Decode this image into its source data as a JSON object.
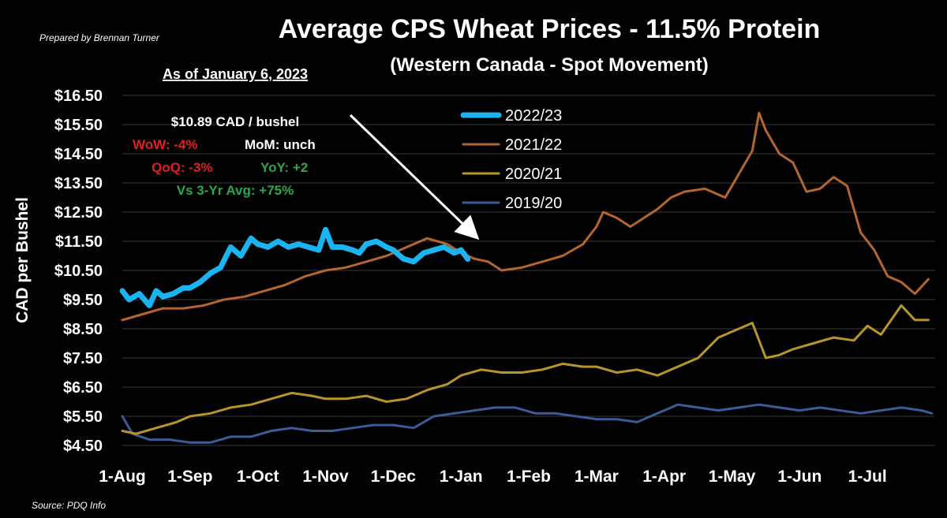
{
  "header": {
    "title": "Average CPS Wheat Prices - 11.5% Protein",
    "subtitle": "(Western Canada - Spot Movement)",
    "prepared_by": "Prepared by Brennan Turner",
    "source": "Source: PDQ Info"
  },
  "annotation": {
    "as_of": "As of January 6, 2023",
    "price": "$10.89 CAD / bushel",
    "wow": "WoW: -4%",
    "mom": "MoM: unch",
    "qoq": "QoQ: -3%",
    "yoy": "YoY: +2",
    "vs3yr": "Vs 3-Yr Avg: +75%"
  },
  "colors": {
    "2022/23": "#1ab4f0",
    "2021/22": "#b5652f",
    "2020/21": "#b8952a",
    "2019/20": "#3d5a99",
    "negative": "#e02020",
    "positive": "#2aa84a",
    "neutral": "#ffffff"
  },
  "chart_data": {
    "type": "line",
    "title": "Average CPS Wheat Prices - 11.5% Protein",
    "subtitle": "(Western Canada - Spot Movement)",
    "ylabel": "CAD per Bushel",
    "xlabel": "",
    "ylim": [
      4.5,
      16.5
    ],
    "yticks": [
      "$4.50",
      "$5.50",
      "$6.50",
      "$7.50",
      "$8.50",
      "$9.50",
      "$10.50",
      "$11.50",
      "$12.50",
      "$13.50",
      "$14.50",
      "$15.50",
      "$16.50"
    ],
    "ytick_values": [
      4.5,
      5.5,
      6.5,
      7.5,
      8.5,
      9.5,
      10.5,
      11.5,
      12.5,
      13.5,
      14.5,
      15.5,
      16.5
    ],
    "xticks": [
      "1-Aug",
      "1-Sep",
      "1-Oct",
      "1-Nov",
      "1-Dec",
      "1-Jan",
      "1-Feb",
      "1-Mar",
      "1-Apr",
      "1-May",
      "1-Jun",
      "1-Jul"
    ],
    "x_unit": "marketing-year month (Aug = 0 ... Jul = 11)",
    "grid": "horizontal",
    "legend_position": "top-center",
    "series": [
      {
        "name": "2022/23",
        "x": [
          0,
          0.1,
          0.25,
          0.4,
          0.5,
          0.6,
          0.75,
          0.9,
          1.0,
          1.15,
          1.3,
          1.45,
          1.6,
          1.75,
          1.9,
          2.0,
          2.15,
          2.3,
          2.45,
          2.6,
          2.75,
          2.9,
          3.0,
          3.1,
          3.25,
          3.4,
          3.5,
          3.6,
          3.75,
          3.9,
          4.0,
          4.15,
          4.3,
          4.45,
          4.6,
          4.75,
          4.9,
          5.0,
          5.1
        ],
        "values": [
          9.8,
          9.5,
          9.7,
          9.3,
          9.8,
          9.6,
          9.7,
          9.9,
          9.9,
          10.1,
          10.4,
          10.6,
          11.3,
          11.0,
          11.6,
          11.4,
          11.3,
          11.5,
          11.3,
          11.4,
          11.3,
          11.2,
          11.9,
          11.3,
          11.3,
          11.2,
          11.1,
          11.4,
          11.5,
          11.3,
          11.2,
          10.9,
          10.8,
          11.1,
          11.2,
          11.3,
          11.1,
          11.2,
          10.89
        ]
      },
      {
        "name": "2021/22",
        "x": [
          0,
          0.3,
          0.6,
          0.9,
          1.2,
          1.5,
          1.8,
          2.1,
          2.4,
          2.7,
          3.0,
          3.3,
          3.6,
          3.9,
          4.2,
          4.5,
          4.8,
          5.0,
          5.2,
          5.4,
          5.6,
          5.9,
          6.2,
          6.5,
          6.8,
          7.0,
          7.1,
          7.3,
          7.5,
          7.7,
          7.9,
          8.1,
          8.3,
          8.6,
          8.9,
          9.1,
          9.3,
          9.4,
          9.5,
          9.7,
          9.9,
          10.1,
          10.3,
          10.5,
          10.7,
          10.9,
          11.1,
          11.3,
          11.5,
          11.7,
          11.9
        ],
        "values": [
          8.8,
          9.0,
          9.2,
          9.2,
          9.3,
          9.5,
          9.6,
          9.8,
          10.0,
          10.3,
          10.5,
          10.6,
          10.8,
          11.0,
          11.3,
          11.6,
          11.4,
          11.1,
          10.9,
          10.8,
          10.5,
          10.6,
          10.8,
          11.0,
          11.4,
          12.0,
          12.5,
          12.3,
          12.0,
          12.3,
          12.6,
          13.0,
          13.2,
          13.3,
          13.0,
          13.8,
          14.6,
          15.9,
          15.3,
          14.5,
          14.2,
          13.2,
          13.3,
          13.7,
          13.4,
          11.8,
          11.2,
          10.3,
          10.1,
          9.7,
          10.2
        ]
      },
      {
        "name": "2020/21",
        "x": [
          0,
          0.2,
          0.5,
          0.8,
          1.0,
          1.3,
          1.6,
          1.9,
          2.2,
          2.5,
          2.8,
          3.0,
          3.3,
          3.6,
          3.9,
          4.2,
          4.5,
          4.8,
          5.0,
          5.3,
          5.6,
          5.9,
          6.2,
          6.5,
          6.8,
          7.0,
          7.3,
          7.6,
          7.9,
          8.2,
          8.5,
          8.8,
          9.1,
          9.3,
          9.5,
          9.7,
          9.9,
          10.2,
          10.5,
          10.8,
          11.0,
          11.2,
          11.5,
          11.7,
          11.9
        ],
        "values": [
          5.0,
          4.9,
          5.1,
          5.3,
          5.5,
          5.6,
          5.8,
          5.9,
          6.1,
          6.3,
          6.2,
          6.1,
          6.1,
          6.2,
          6.0,
          6.1,
          6.4,
          6.6,
          6.9,
          7.1,
          7.0,
          7.0,
          7.1,
          7.3,
          7.2,
          7.2,
          7.0,
          7.1,
          6.9,
          7.2,
          7.5,
          8.2,
          8.5,
          8.7,
          7.5,
          7.6,
          7.8,
          8.0,
          8.2,
          8.1,
          8.6,
          8.3,
          9.3,
          8.8,
          8.8
        ]
      },
      {
        "name": "2019/20",
        "x": [
          0,
          0.15,
          0.4,
          0.7,
          1.0,
          1.3,
          1.6,
          1.9,
          2.2,
          2.5,
          2.8,
          3.1,
          3.4,
          3.7,
          4.0,
          4.3,
          4.6,
          4.9,
          5.2,
          5.5,
          5.8,
          6.1,
          6.4,
          6.7,
          7.0,
          7.3,
          7.6,
          7.9,
          8.2,
          8.5,
          8.8,
          9.1,
          9.4,
          9.7,
          10.0,
          10.3,
          10.6,
          10.9,
          11.2,
          11.5,
          11.8,
          11.95
        ],
        "values": [
          5.5,
          4.9,
          4.7,
          4.7,
          4.6,
          4.6,
          4.8,
          4.8,
          5.0,
          5.1,
          5.0,
          5.0,
          5.1,
          5.2,
          5.2,
          5.1,
          5.5,
          5.6,
          5.7,
          5.8,
          5.8,
          5.6,
          5.6,
          5.5,
          5.4,
          5.4,
          5.3,
          5.6,
          5.9,
          5.8,
          5.7,
          5.8,
          5.9,
          5.8,
          5.7,
          5.8,
          5.7,
          5.6,
          5.7,
          5.8,
          5.7,
          5.6
        ]
      }
    ]
  }
}
